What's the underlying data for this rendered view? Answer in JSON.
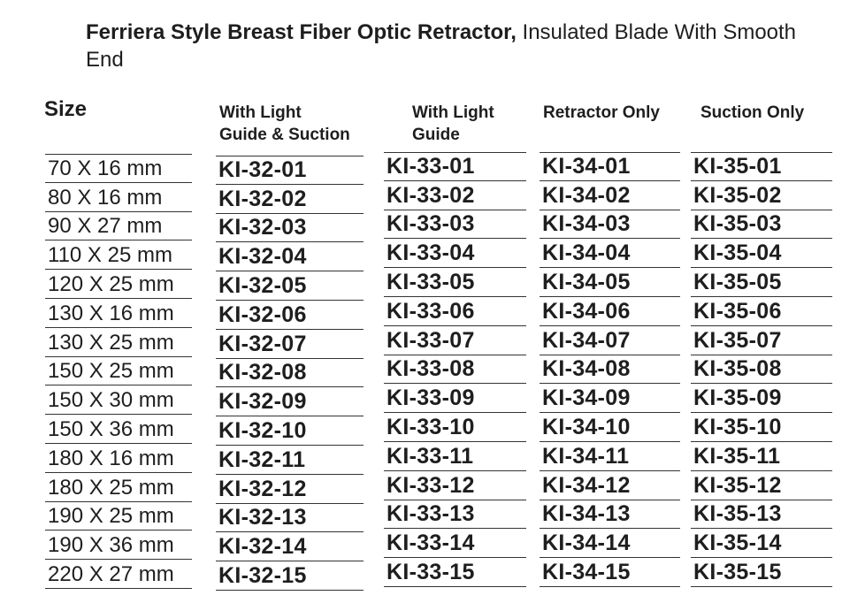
{
  "title": {
    "bold": "Ferriera Style Breast Fiber Optic Retractor,",
    "rest": " Insulated Blade With Smooth End"
  },
  "headers": {
    "size": "Size",
    "c1": [
      "With Light",
      "Guide & Suction"
    ],
    "c2": [
      "With Light",
      "Guide"
    ],
    "c3": "Retractor Only",
    "c4": "Suction Only"
  },
  "rows": [
    [
      "70 X 16 mm",
      "KI-32-01",
      "KI-33-01",
      "KI-34-01",
      "KI-35-01"
    ],
    [
      "80 X 16 mm",
      "KI-32-02",
      "KI-33-02",
      "KI-34-02",
      "KI-35-02"
    ],
    [
      "90 X 27 mm",
      "KI-32-03",
      "KI-33-03",
      "KI-34-03",
      "KI-35-03"
    ],
    [
      "110 X 25 mm",
      "KI-32-04",
      "KI-33-04",
      "KI-34-04",
      "KI-35-04"
    ],
    [
      "120 X 25 mm",
      "KI-32-05",
      "KI-33-05",
      "KI-34-05",
      "KI-35-05"
    ],
    [
      "130 X 16 mm",
      "KI-32-06",
      "KI-33-06",
      "KI-34-06",
      "KI-35-06"
    ],
    [
      "130 X 25 mm",
      "KI-32-07",
      "KI-33-07",
      "KI-34-07",
      "KI-35-07"
    ],
    [
      "150 X 25 mm",
      "KI-32-08",
      "KI-33-08",
      "KI-34-08",
      "KI-35-08"
    ],
    [
      "150 X 30 mm",
      "KI-32-09",
      "KI-33-09",
      "KI-34-09",
      "KI-35-09"
    ],
    [
      "150 X 36 mm",
      "KI-32-10",
      "KI-33-10",
      "KI-34-10",
      "KI-35-10"
    ],
    [
      "180 X 16 mm",
      "KI-32-11",
      "KI-33-11",
      "KI-34-11",
      "KI-35-11"
    ],
    [
      "180 X 25 mm",
      "KI-32-12",
      "KI-33-12",
      "KI-34-12",
      "KI-35-12"
    ],
    [
      "190 X 25 mm",
      "KI-32-13",
      "KI-33-13",
      "KI-34-13",
      "KI-35-13"
    ],
    [
      "190 X 36 mm",
      "KI-32-14",
      "KI-33-14",
      "KI-34-14",
      "KI-35-14"
    ],
    [
      "220 X 27 mm",
      "KI-32-15",
      "KI-33-15",
      "KI-34-15",
      "KI-35-15"
    ]
  ]
}
